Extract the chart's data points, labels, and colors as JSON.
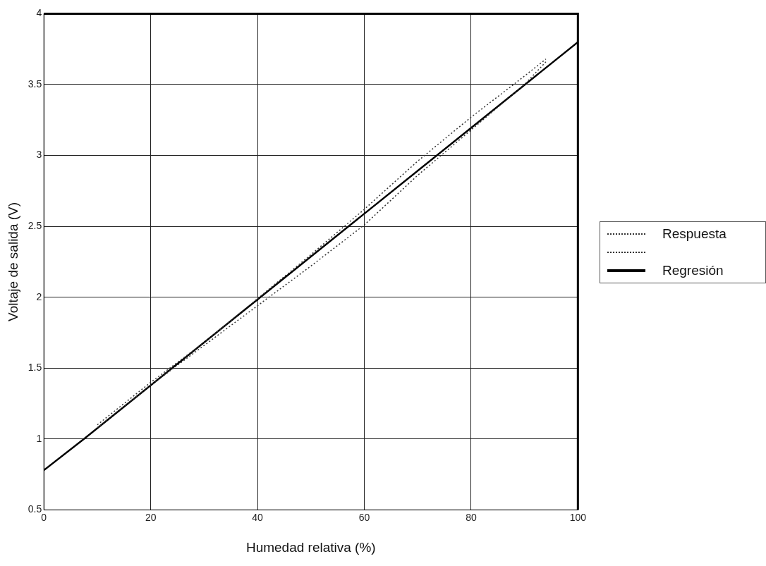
{
  "chart_data": {
    "type": "line",
    "xlabel": "Humedad relativa (%)",
    "ylabel": "Voltaje de salida (V)",
    "xlim": [
      0,
      100
    ],
    "xticks": [
      0,
      20,
      40,
      60,
      80,
      100
    ],
    "ylim": [
      0.5,
      4
    ],
    "yticks": [
      0.5,
      1,
      1.5,
      2,
      2.5,
      3,
      3.5,
      4
    ],
    "grid": true,
    "legend": "right",
    "marker": "none",
    "series": [
      {
        "name": "Respuesta",
        "color": "#333333",
        "line_style": "dotted",
        "x": [
          10,
          20,
          30,
          40,
          50,
          60,
          70,
          80,
          90,
          94
        ],
        "values": [
          1.1,
          1.4,
          1.68,
          1.99,
          2.3,
          2.62,
          2.96,
          3.27,
          3.56,
          3.68
        ]
      },
      {
        "color": "#333333",
        "line_style": "dotted",
        "x": [
          10,
          20,
          30,
          40,
          50,
          60,
          70,
          80,
          90,
          94
        ],
        "values": [
          1.08,
          1.38,
          1.66,
          1.94,
          2.22,
          2.51,
          2.86,
          3.18,
          3.5,
          3.66
        ]
      },
      {
        "name": "Regresión",
        "color": "#000000",
        "line_style": "solid",
        "x": [
          0,
          7.5,
          100
        ],
        "values": [
          0.78,
          1.0,
          3.8
        ]
      }
    ]
  }
}
